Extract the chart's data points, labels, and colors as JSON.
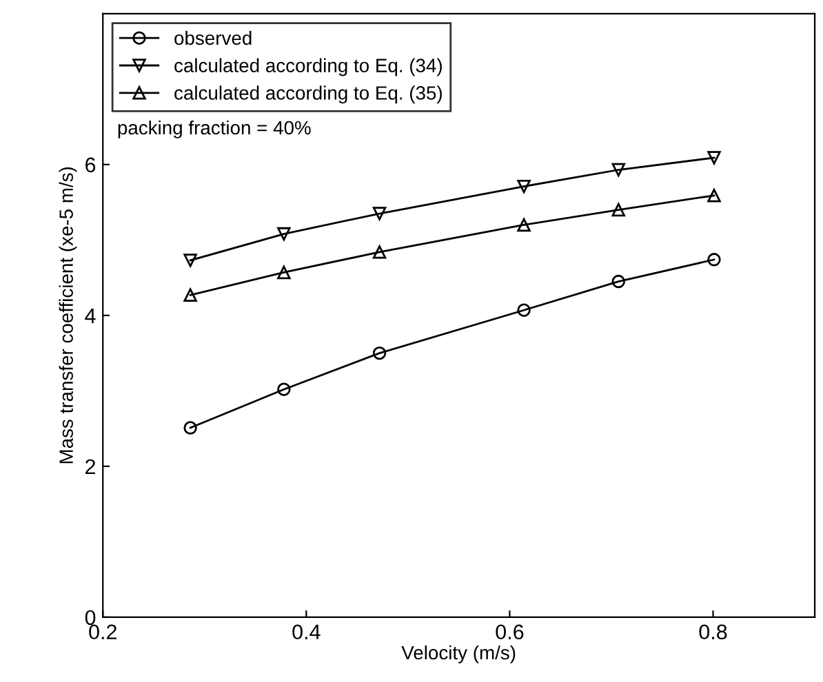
{
  "chart_data": {
    "type": "line",
    "xlabel": "Velocity (m/s)",
    "ylabel": "Mass transfer coefficient (xe-5 m/s)",
    "x": [
      0.286,
      0.378,
      0.472,
      0.614,
      0.707,
      0.801
    ],
    "series": [
      {
        "name": "observed",
        "color": "#000000",
        "marker": "circle",
        "values": [
          2.51,
          3.02,
          3.5,
          4.07,
          4.45,
          4.74
        ]
      },
      {
        "name": "calculated according to Eq. (34)",
        "color": "#000000",
        "marker": "triangle_down",
        "values": [
          4.73,
          5.08,
          5.35,
          5.71,
          5.93,
          6.09
        ]
      },
      {
        "name": "calculated according to Eq. (35)",
        "color": "#000000",
        "marker": "triangle",
        "values": [
          4.27,
          4.57,
          4.84,
          5.2,
          5.4,
          5.59
        ]
      }
    ],
    "xlim": [
      0.2,
      0.9
    ],
    "ylim": [
      0,
      8
    ],
    "xticks": [
      0.2,
      0.4,
      0.6,
      0.8
    ],
    "yticks": [
      0,
      2,
      4,
      6
    ],
    "annotations": [
      "packing fraction = 40%"
    ],
    "legend": "top left",
    "grid": false,
    "line_style": "solid"
  }
}
